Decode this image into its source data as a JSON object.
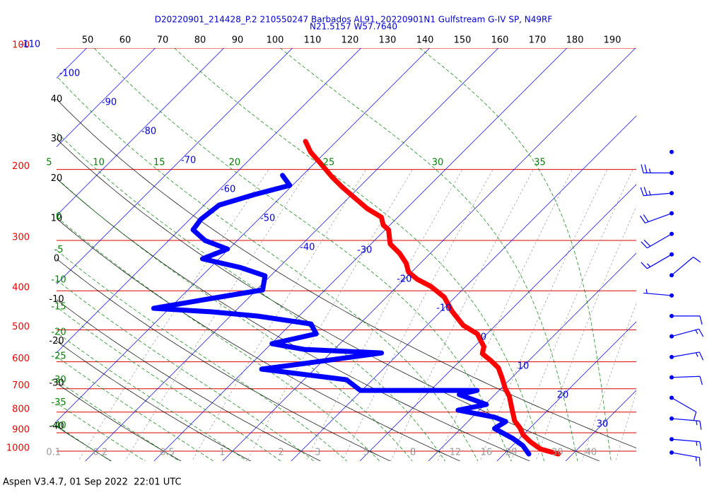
{
  "chart_data": {
    "type": "skewt",
    "title": "D20220901_214428_P.2 210550247 Barbados AL91, 20220901N1 Gulfstream G-IV SP, N49RF",
    "subtitle": "N21.5157 W57.7640",
    "footer": "Aspen V3.4.7, 01 Sep 2022  22:01 UTC",
    "log_y": true,
    "ylim": [
      100,
      1058
    ],
    "xlim": [
      -44.2,
      40.3
    ],
    "isobars": [
      100,
      200,
      300,
      400,
      500,
      600,
      700,
      800,
      900,
      1000
    ],
    "isotherms": [
      -110,
      -100,
      -90,
      -80,
      -70,
      -60,
      -50,
      -40,
      -30,
      -20,
      -10,
      0,
      10,
      20,
      30
    ],
    "dry_adiabats": [
      40,
      30,
      20,
      10,
      0,
      -10,
      -20,
      -30,
      -40
    ],
    "moist_adiabats": [
      -40,
      -35,
      -30,
      -25,
      -20,
      -15,
      -10,
      -5,
      0,
      5,
      10,
      15,
      20,
      25,
      30,
      35
    ],
    "mixing_ratios": [
      0.1,
      0.2,
      0.5,
      1,
      2,
      3,
      5,
      8,
      12,
      16,
      20,
      30,
      40
    ],
    "top_xlim": [
      41.7,
      196.4
    ],
    "top_xticks": [
      50,
      60,
      70,
      80,
      90,
      100,
      110,
      120,
      130,
      140,
      150,
      160,
      170,
      180,
      190
    ],
    "series": [
      {
        "color": "#ff0000",
        "pressure": [
          170.4,
          181.1,
          194.0,
          208.6,
          221.6,
          233.6,
          250.2,
          262.7,
          274.6,
          282.4,
          306.2,
          322.8,
          341.5,
          359.8,
          374.7,
          390.1,
          414.6,
          449.5,
          487.4,
          511.6,
          550.1,
          572.8,
          596.4,
          620.9,
          659.6,
          700.5,
          729.6,
          791.1,
          840.6,
          875.1,
          911.3,
          948.8,
          987.9,
          1016
        ],
        "values": [
          -54.5,
          -52.2,
          -48.9,
          -45.5,
          -42.4,
          -39.5,
          -35.7,
          -32.4,
          -31.0,
          -29.5,
          -27.2,
          -24.5,
          -22.1,
          -20.4,
          -18.1,
          -15.1,
          -11.6,
          -8.4,
          -4.7,
          -1.4,
          1.4,
          2.2,
          4.5,
          6.6,
          8.7,
          10.7,
          12.3,
          14.8,
          16.7,
          18.5,
          20.0,
          22.1,
          24.6,
          27.9
        ]
      },
      {
        "color": "#0000ff",
        "pressure": [
          206.9,
          219.0,
          230.8,
          245.2,
          265.9,
          282.4,
          300.1,
          315.0,
          333.3,
          349.9,
          367.3,
          398.1,
          417.9,
          442.2,
          451.2,
          462.3,
          483.4,
          511.6,
          541.2,
          559.0,
          570.4,
          606.3,
          625.9,
          665.0,
          706.8,
          706.8,
          723.6,
          765.8,
          791.1,
          823.8,
          844.0,
          878.7,
          929.9,
          968.3,
          1016
        ],
        "values": [
          -52.9,
          -50.4,
          -54.2,
          -57.8,
          -58.4,
          -58.0,
          -54.7,
          -50.2,
          -52.4,
          -45.7,
          -40.8,
          -39.1,
          -45.3,
          -52.3,
          -43.3,
          -36.0,
          -27.1,
          -24.9,
          -29.9,
          -24.4,
          -12.6,
          -22.4,
          -27.7,
          -13.8,
          -10.2,
          6.8,
          4.8,
          10.2,
          6.9,
          13.3,
          15.5,
          14.9,
          19.0,
          21.5,
          23.6
        ]
      }
    ],
    "winds": {
      "color": "#0000ff",
      "pressure": [
        181,
        204,
        229,
        257,
        289,
        325,
        366,
        411,
        462,
        519,
        584,
        656,
        737,
        830,
        934,
        1008
      ],
      "speed": [
        0,
        25,
        25,
        20,
        20,
        15,
        10,
        5,
        10,
        15,
        15,
        10,
        10,
        15,
        15,
        15
      ],
      "direction": [
        0,
        270,
        265,
        250,
        240,
        240,
        50,
        275,
        90,
        75,
        80,
        88,
        120,
        95,
        95,
        100
      ]
    }
  }
}
